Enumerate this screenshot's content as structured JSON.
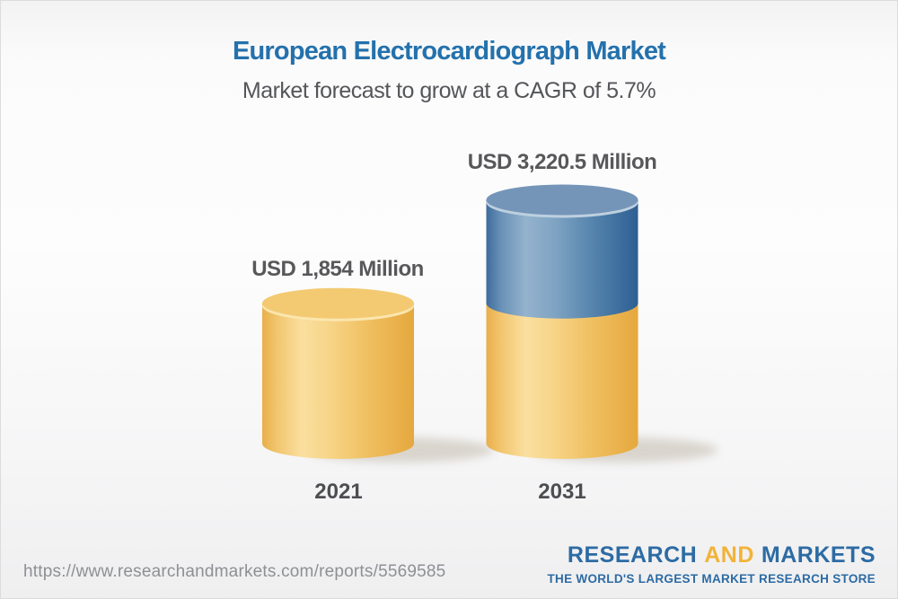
{
  "header": {
    "title": "European Electrocardiograph Market",
    "subtitle": "Market forecast to grow at a CAGR of 5.7%"
  },
  "chart_data": {
    "type": "bar",
    "variant": "3d-cylinder-stacked",
    "title": "European Electrocardiograph Market",
    "subtitle": "Market forecast to grow at a CAGR of 5.7%",
    "unit": "USD Million",
    "cagr_percent": 5.7,
    "categories": [
      "2021",
      "2031"
    ],
    "values": [
      1854,
      3220.5
    ],
    "value_labels": [
      "USD 1,854 Million",
      "USD 3,220.5 Million"
    ],
    "legend": "none",
    "axes": "none",
    "bars": [
      {
        "year": "2021",
        "total": 1854,
        "segments": [
          {
            "name": "market-2021-base",
            "value": 1854,
            "color": "yellow"
          }
        ]
      },
      {
        "year": "2031",
        "total": 3220.5,
        "segments": [
          {
            "name": "market-2021-base",
            "value": 1854,
            "color": "yellow"
          },
          {
            "name": "growth-2021-to-2031",
            "value": 1366.5,
            "color": "blue"
          }
        ]
      }
    ],
    "colors": {
      "yellow": "#F3CA72",
      "blue": "#7495B8"
    }
  },
  "footer": {
    "url": "https://www.researchandmarkets.com/reports/5569585",
    "logo": {
      "research": "RESEARCH",
      "and": "AND",
      "markets": "MARKETS",
      "tagline": "THE WORLD'S LARGEST MARKET RESEARCH STORE"
    }
  },
  "colors": {
    "title_blue": "#2471AC",
    "label_gray": "#58585B",
    "logo_blue": "#2D6BA4",
    "logo_gold": "#F2B338",
    "url_gray": "#8E9093"
  }
}
